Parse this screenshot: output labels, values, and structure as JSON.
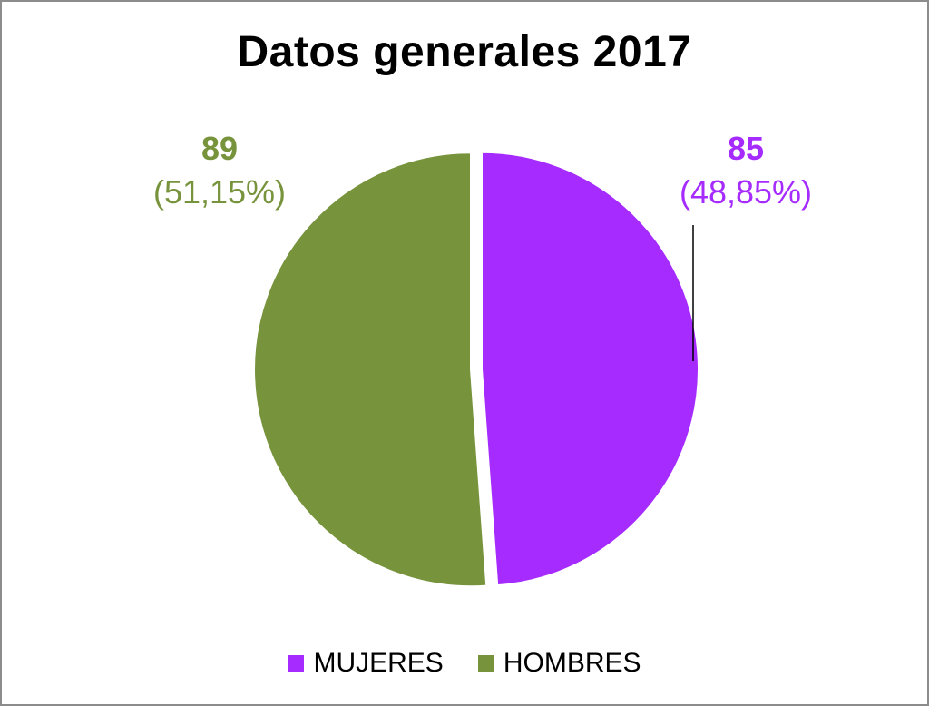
{
  "chart_data": {
    "type": "pie",
    "title": "Datos generales 2017",
    "slices": [
      {
        "name": "MUJERES",
        "value": 85,
        "percent_label": "(48,85%)",
        "value_label": "85",
        "color": "#A52BFF"
      },
      {
        "name": "HOMBRES",
        "value": 89,
        "percent_label": "(51,15%)",
        "value_label": "89",
        "color": "#77933C"
      }
    ],
    "legend_position": "bottom"
  }
}
